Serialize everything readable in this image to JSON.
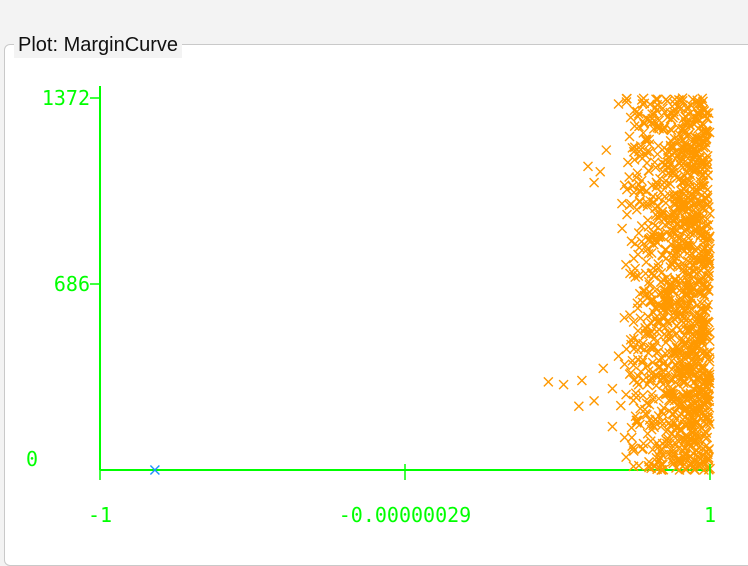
{
  "panel": {
    "title": "Plot: MarginCurve"
  },
  "colors": {
    "axis": "#00ff00",
    "series_main": "#ff9900",
    "series_outlier": "#1e90ff",
    "background": "#ffffff"
  },
  "chart_data": {
    "type": "scatter",
    "title": "",
    "xlabel": "",
    "ylabel": "",
    "xlim": [
      -1,
      1
    ],
    "ylim": [
      0,
      1372
    ],
    "x_ticks": [
      {
        "value": -1,
        "label": "-1"
      },
      {
        "value": -2.9e-07,
        "label": "-0.00000029"
      },
      {
        "value": 1,
        "label": "1"
      }
    ],
    "y_ticks": [
      {
        "value": 0,
        "label": "0"
      },
      {
        "value": 686,
        "label": "686"
      },
      {
        "value": 1372,
        "label": "1372"
      }
    ],
    "marker": "x",
    "grid": false,
    "series": [
      {
        "color": "#1e90ff",
        "points": [
          [
            -0.82,
            0
          ]
        ]
      },
      {
        "color": "#ff9900",
        "points": [
          [
            0.47,
            325
          ],
          [
            0.52,
            315
          ],
          [
            0.57,
            235
          ],
          [
            0.62,
            255
          ],
          [
            0.58,
            330
          ],
          [
            0.65,
            375
          ],
          [
            0.68,
            300
          ],
          [
            0.7,
            420
          ],
          [
            0.72,
            390
          ],
          [
            0.6,
            1120
          ],
          [
            0.62,
            1060
          ],
          [
            0.64,
            1100
          ],
          [
            0.66,
            1180
          ],
          [
            0.7,
            1350
          ],
          [
            0.74,
            1300
          ],
          [
            0.72,
            1050
          ],
          [
            0.76,
            960
          ],
          [
            0.75,
            780
          ],
          [
            0.8,
            850
          ],
          [
            0.86,
            1360
          ],
          [
            0.9,
            1340
          ],
          [
            0.68,
            160
          ],
          [
            0.72,
            120
          ],
          [
            0.75,
            70
          ],
          [
            0.8,
            30
          ],
          [
            0.84,
            0
          ],
          [
            0.9,
            0
          ],
          [
            0.95,
            0
          ],
          [
            0.98,
            0
          ],
          [
            1.0,
            5
          ],
          [
            0.82,
            560
          ],
          [
            0.86,
            620
          ],
          [
            0.77,
            650
          ],
          [
            0.79,
            520
          ],
          [
            0.74,
            480
          ]
        ],
        "fill_band": {
          "x_min": 0.7,
          "x_max": 1.0,
          "y_min": 0,
          "y_max": 1372,
          "count": 1300,
          "seed": 7
        }
      }
    ]
  }
}
